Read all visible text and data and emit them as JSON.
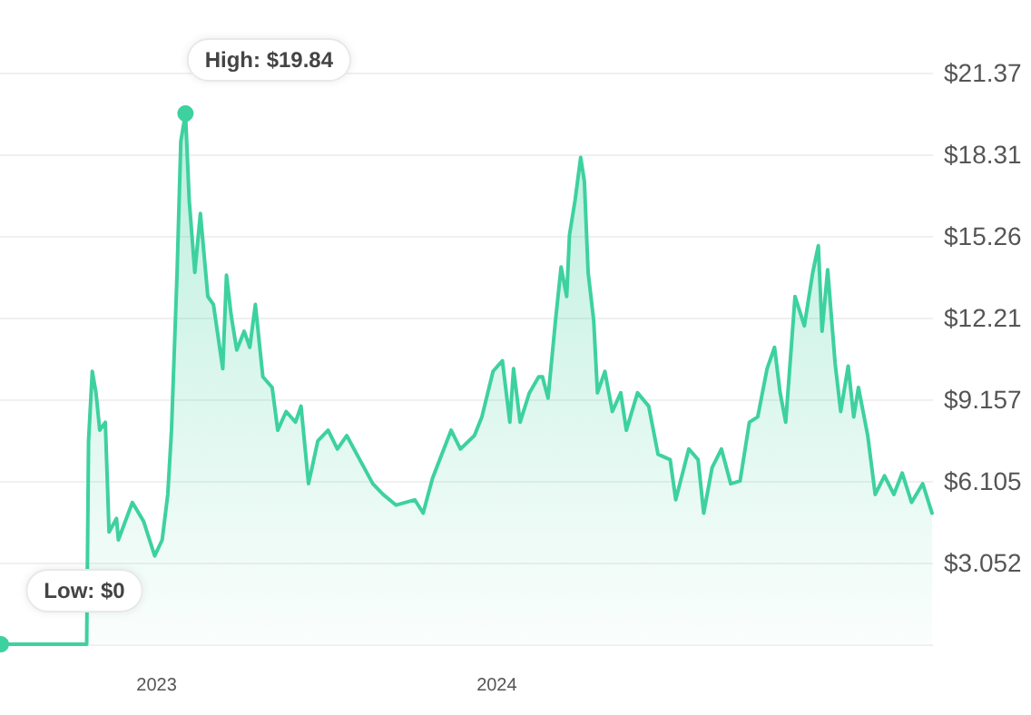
{
  "chart_data": {
    "type": "area",
    "x": [
      "2022-07-18",
      "2022-10-18",
      "2022-10-20",
      "2022-10-24",
      "2022-10-28",
      "2022-11-01",
      "2022-11-07",
      "2022-11-11",
      "2022-11-19",
      "2022-11-21",
      "2022-12-06",
      "2022-12-18",
      "2022-12-30",
      "2023-01-07",
      "2023-01-13",
      "2023-01-17",
      "2023-01-23",
      "2023-01-27",
      "2023-02-01",
      "2023-02-05",
      "2023-02-11",
      "2023-02-17",
      "2023-02-25",
      "2023-03-03",
      "2023-03-13",
      "2023-03-17",
      "2023-03-22",
      "2023-03-28",
      "2023-04-05",
      "2023-04-11",
      "2023-04-17",
      "2023-04-25",
      "2023-05-05",
      "2023-05-11",
      "2023-05-20",
      "2023-05-30",
      "2023-06-05",
      "2023-06-13",
      "2023-06-23",
      "2023-07-04",
      "2023-07-14",
      "2023-07-24",
      "2023-08-07",
      "2023-08-21",
      "2023-09-01",
      "2023-09-15",
      "2023-10-05",
      "2023-10-14",
      "2023-10-24",
      "2023-11-13",
      "2023-11-23",
      "2023-12-08",
      "2023-12-16",
      "2023-12-28",
      "2024-01-07",
      "2024-01-15",
      "2024-01-19",
      "2024-01-26",
      "2024-02-05",
      "2024-02-15",
      "2024-02-19",
      "2024-02-25",
      "2024-03-04",
      "2024-03-10",
      "2024-03-16",
      "2024-03-19",
      "2024-03-25",
      "2024-03-31",
      "2024-04-04",
      "2024-04-08",
      "2024-04-14",
      "2024-04-18",
      "2024-04-26",
      "2024-05-04",
      "2024-05-13",
      "2024-05-19",
      "2024-05-31",
      "2024-06-12",
      "2024-06-22",
      "2024-07-05",
      "2024-07-11",
      "2024-07-25",
      "2024-08-04",
      "2024-08-10",
      "2024-08-19",
      "2024-08-29",
      "2024-09-08",
      "2024-09-18",
      "2024-09-28",
      "2024-10-07",
      "2024-10-17",
      "2024-10-25",
      "2024-10-31",
      "2024-11-06",
      "2024-11-16",
      "2024-11-26",
      "2024-12-05",
      "2024-12-11",
      "2024-12-15",
      "2024-12-21",
      "2024-12-29",
      "2025-01-04",
      "2025-01-12",
      "2025-01-18",
      "2025-01-23",
      "2025-02-02",
      "2025-02-10",
      "2025-02-20",
      "2025-03-02",
      "2025-03-11",
      "2025-03-21",
      "2025-04-02",
      "2025-04-12"
    ],
    "series": [
      {
        "color": "#3ed1a0",
        "values": [
          0,
          0,
          7.6,
          10.2,
          9.4,
          8.0,
          8.3,
          4.2,
          4.7,
          3.9,
          5.3,
          4.6,
          3.3,
          3.9,
          5.6,
          8.0,
          13.9,
          18.8,
          19.84,
          16.6,
          13.9,
          16.1,
          13.0,
          12.7,
          10.3,
          13.8,
          12.3,
          11.0,
          11.7,
          11.1,
          12.7,
          10.0,
          9.6,
          8.0,
          8.7,
          8.3,
          8.9,
          6.0,
          7.6,
          8.0,
          7.3,
          7.8,
          6.9,
          6.0,
          5.6,
          5.2,
          5.4,
          4.9,
          6.2,
          8.0,
          7.3,
          7.8,
          8.5,
          10.2,
          10.6,
          8.3,
          10.3,
          8.3,
          9.4,
          10.0,
          10.0,
          9.2,
          12.1,
          14.1,
          13.0,
          15.3,
          16.6,
          18.2,
          17.3,
          13.9,
          12.1,
          9.4,
          10.2,
          8.7,
          9.4,
          8.0,
          9.4,
          8.9,
          7.1,
          6.9,
          5.4,
          7.3,
          6.9,
          4.9,
          6.6,
          7.3,
          6.0,
          6.1,
          8.3,
          8.5,
          10.3,
          11.1,
          9.4,
          8.3,
          13.0,
          11.9,
          13.9,
          14.9,
          11.7,
          14.0,
          10.5,
          8.7,
          10.4,
          8.5,
          9.6,
          7.8,
          5.6,
          6.3,
          5.6,
          6.4,
          5.3,
          6.0,
          4.9
        ]
      }
    ],
    "xlim": [
      "2022-07-17",
      "2025-04-13"
    ],
    "xticks": [
      "2023",
      "2024"
    ],
    "ylim": [
      0,
      21.37
    ],
    "yticks": [
      {
        "value": 0,
        "label": null
      },
      {
        "value": 3.052,
        "label": "$3.052"
      },
      {
        "value": 6.105,
        "label": "$6.105"
      },
      {
        "value": 9.157,
        "label": "$9.157"
      },
      {
        "value": 12.21,
        "label": "$12.21"
      },
      {
        "value": 15.26,
        "label": "$15.26"
      },
      {
        "value": 18.31,
        "label": "$18.31"
      },
      {
        "value": 21.37,
        "label": "$21.37"
      }
    ],
    "grid": "y",
    "marker": "none",
    "annotations": [
      {
        "text": "High: $19.84",
        "x": "2023-02-01",
        "y": 19.84
      },
      {
        "text": "Low: $0",
        "x": "2022-07-18",
        "y": 0
      }
    ]
  }
}
